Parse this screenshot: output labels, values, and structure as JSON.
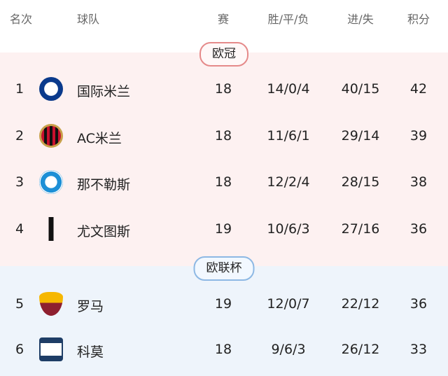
{
  "header": {
    "rank": "名次",
    "team": "球队",
    "played": "赛",
    "wdl": "胜/平/负",
    "goals": "进/失",
    "points": "积分"
  },
  "zones": [
    {
      "label": "欧冠",
      "color": "#e58a8a"
    },
    {
      "label": "欧联杯",
      "color": "#8db8e4"
    }
  ],
  "rows": [
    {
      "rank": "1",
      "team": "国际米兰",
      "played": "18",
      "wdl": "14/0/4",
      "goals": "40/15",
      "points": "42",
      "logo": "inter-logo"
    },
    {
      "rank": "2",
      "team": "AC米兰",
      "played": "18",
      "wdl": "11/6/1",
      "goals": "29/14",
      "points": "39",
      "logo": "ac-milan-logo"
    },
    {
      "rank": "3",
      "team": "那不勒斯",
      "played": "18",
      "wdl": "12/2/4",
      "goals": "28/15",
      "points": "38",
      "logo": "napoli-logo"
    },
    {
      "rank": "4",
      "team": "尤文图斯",
      "played": "19",
      "wdl": "10/6/3",
      "goals": "27/16",
      "points": "36",
      "logo": "juventus-logo"
    },
    {
      "rank": "5",
      "team": "罗马",
      "played": "19",
      "wdl": "12/0/7",
      "goals": "22/12",
      "points": "36",
      "logo": "roma-logo"
    },
    {
      "rank": "6",
      "team": "科莫",
      "played": "18",
      "wdl": "9/6/3",
      "goals": "26/12",
      "points": "33",
      "logo": "como-logo"
    }
  ]
}
